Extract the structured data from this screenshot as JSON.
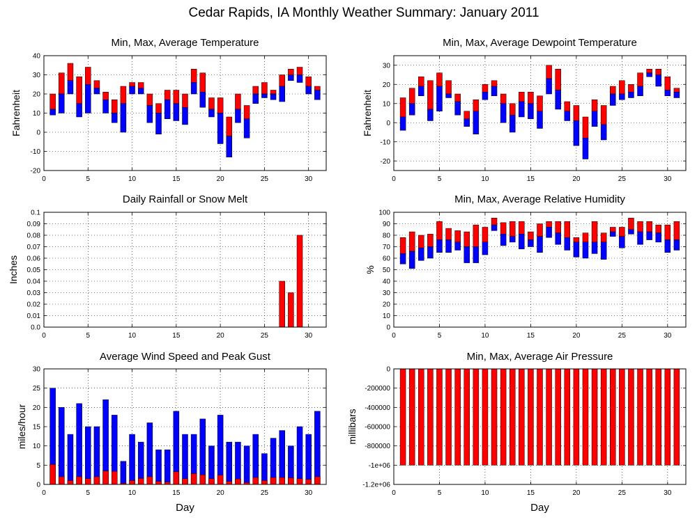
{
  "page": {
    "title": "Cedar Rapids, IA Monthly Weather Summary: January 2011"
  },
  "colors": {
    "red": "#ff0000",
    "blue": "#0000ff",
    "frame": "#000000",
    "grid": "#000000"
  },
  "chart_data": [
    {
      "id": "temperature",
      "type": "bar",
      "title": "Min, Max, Average Temperature",
      "xlabel": "",
      "ylabel": "Fahrenheit",
      "xlim": [
        0,
        32
      ],
      "ylim": [
        -20,
        40
      ],
      "xticks": [
        0,
        5,
        10,
        15,
        20,
        25,
        30
      ],
      "yticks": [
        -20,
        -10,
        0,
        10,
        20,
        30,
        40
      ],
      "ytick_labels": [
        "-20",
        "-10",
        "0",
        "10",
        "20",
        "30",
        "40"
      ],
      "grid": true,
      "x": [
        1,
        2,
        3,
        4,
        5,
        6,
        7,
        8,
        9,
        10,
        11,
        12,
        13,
        14,
        15,
        16,
        17,
        18,
        19,
        20,
        21,
        22,
        23,
        24,
        25,
        26,
        27,
        28,
        29,
        30,
        31
      ],
      "series": [
        {
          "role": "max",
          "color": "red",
          "values": [
            20,
            31,
            36,
            29,
            34,
            27,
            21,
            17,
            24,
            26,
            26,
            20,
            15,
            22,
            22,
            20,
            33,
            31,
            18,
            18,
            8,
            20,
            14,
            24,
            26,
            22,
            30,
            33,
            34,
            29,
            24
          ]
        },
        {
          "role": "avg",
          "color": "red",
          "values": [
            12,
            20,
            27,
            15,
            25,
            23,
            17,
            10,
            15,
            24,
            23,
            14,
            10,
            17,
            15,
            13,
            26,
            21,
            12,
            10,
            -2,
            12,
            7,
            20,
            20,
            20,
            24,
            30,
            30,
            24,
            22
          ]
        },
        {
          "role": "min",
          "color": "blue",
          "values": [
            9,
            10,
            20,
            8,
            10,
            20,
            10,
            5,
            0,
            20,
            20,
            5,
            -1,
            7,
            6,
            4,
            20,
            13,
            8,
            -6,
            -13,
            5,
            -3,
            15,
            18,
            17,
            16,
            27,
            26,
            20,
            17
          ]
        }
      ]
    },
    {
      "id": "dewpoint",
      "type": "bar",
      "title": "Min, Max, Average Dewpoint Temperature",
      "xlabel": "",
      "ylabel": "Fahrenheit",
      "xlim": [
        0,
        32
      ],
      "ylim": [
        -25,
        35
      ],
      "xticks": [
        0,
        5,
        10,
        15,
        20,
        25,
        30
      ],
      "yticks": [
        -20,
        -10,
        0,
        10,
        20,
        30
      ],
      "ytick_labels": [
        "-20",
        "-10",
        "0",
        "10",
        "20",
        "30"
      ],
      "grid": true,
      "x": [
        1,
        2,
        3,
        4,
        5,
        6,
        7,
        8,
        9,
        10,
        11,
        12,
        13,
        14,
        15,
        16,
        17,
        18,
        19,
        20,
        21,
        22,
        23,
        24,
        25,
        26,
        27,
        28,
        29,
        30,
        31
      ],
      "series": [
        {
          "role": "max",
          "color": "red",
          "values": [
            13,
            18,
            24,
            22,
            26,
            22,
            15,
            6,
            12,
            20,
            22,
            15,
            10,
            16,
            16,
            14,
            30,
            28,
            11,
            9,
            3,
            12,
            9,
            19,
            22,
            20,
            26,
            28,
            28,
            24,
            18
          ]
        },
        {
          "role": "avg",
          "color": "red",
          "values": [
            3,
            10,
            19,
            7,
            19,
            15,
            11,
            2,
            6,
            16,
            19,
            10,
            4,
            11,
            10,
            6,
            23,
            17,
            6,
            1,
            -8,
            6,
            -1,
            15,
            15,
            16,
            19,
            26,
            25,
            17,
            16
          ]
        },
        {
          "role": "min",
          "color": "blue",
          "values": [
            -4,
            4,
            14,
            1,
            6,
            13,
            4,
            -2,
            -6,
            12,
            14,
            0,
            -5,
            3,
            2,
            -3,
            15,
            7,
            1,
            -12,
            -19,
            -2,
            -9,
            9,
            12,
            13,
            14,
            24,
            19,
            14,
            13
          ]
        }
      ]
    },
    {
      "id": "rainfall",
      "type": "bar",
      "title": "Daily Rainfall or Snow Melt",
      "xlabel": "",
      "ylabel": "Inches",
      "xlim": [
        0,
        32
      ],
      "ylim": [
        0,
        0.1
      ],
      "xticks": [
        0,
        5,
        10,
        15,
        20,
        25,
        30
      ],
      "yticks": [
        0,
        0.01,
        0.02,
        0.03,
        0.04,
        0.05,
        0.06,
        0.07,
        0.08,
        0.09,
        0.1
      ],
      "ytick_labels": [
        "0.0",
        "0.01",
        "0.02",
        "0.03",
        "0.04",
        "0.05",
        "0.06",
        "0.07",
        "0.08",
        "0.09",
        "0.1"
      ],
      "grid": true,
      "x": [
        27,
        28,
        29
      ],
      "series": [
        {
          "role": "precip",
          "color": "red",
          "values": [
            0.04,
            0.03,
            0.08
          ]
        }
      ]
    },
    {
      "id": "humidity",
      "type": "bar",
      "title": "Min, Max, Average Relative Humidity",
      "xlabel": "",
      "ylabel": "%",
      "xlim": [
        0,
        32
      ],
      "ylim": [
        0,
        100
      ],
      "xticks": [
        0,
        5,
        10,
        15,
        20,
        25,
        30
      ],
      "yticks": [
        0,
        10,
        20,
        30,
        40,
        50,
        60,
        70,
        80,
        90,
        100
      ],
      "ytick_labels": [
        "0",
        "10",
        "20",
        "30",
        "40",
        "50",
        "60",
        "70",
        "80",
        "90",
        "100"
      ],
      "grid": true,
      "x": [
        1,
        2,
        3,
        4,
        5,
        6,
        7,
        8,
        9,
        10,
        11,
        12,
        13,
        14,
        15,
        16,
        17,
        18,
        19,
        20,
        21,
        22,
        23,
        24,
        25,
        26,
        27,
        28,
        29,
        30,
        31
      ],
      "series": [
        {
          "role": "max",
          "color": "red",
          "values": [
            78,
            83,
            80,
            81,
            92,
            86,
            84,
            83,
            89,
            87,
            95,
            91,
            92,
            92,
            83,
            90,
            92,
            92,
            92,
            78,
            82,
            92,
            82,
            87,
            87,
            95,
            92,
            92,
            89,
            89,
            92
          ]
        },
        {
          "role": "avg",
          "color": "red",
          "values": [
            64,
            66,
            69,
            70,
            76,
            76,
            74,
            70,
            70,
            74,
            89,
            81,
            79,
            81,
            76,
            79,
            87,
            82,
            78,
            74,
            74,
            74,
            74,
            83,
            79,
            85,
            83,
            83,
            82,
            76,
            76
          ]
        },
        {
          "role": "min",
          "color": "blue",
          "values": [
            55,
            51,
            58,
            60,
            65,
            65,
            67,
            56,
            56,
            63,
            84,
            71,
            74,
            68,
            70,
            65,
            78,
            72,
            67,
            61,
            60,
            64,
            59,
            79,
            69,
            81,
            72,
            76,
            74,
            65,
            67
          ]
        }
      ]
    },
    {
      "id": "wind",
      "type": "bar",
      "title": "Average Wind Speed and Peak Gust",
      "xlabel": "Day",
      "ylabel": "miles/hour",
      "xlim": [
        0,
        32
      ],
      "ylim": [
        0,
        30
      ],
      "xticks": [
        0,
        5,
        10,
        15,
        20,
        25,
        30
      ],
      "yticks": [
        0,
        5,
        10,
        15,
        20,
        25,
        30
      ],
      "ytick_labels": [
        "0",
        "5",
        "10",
        "15",
        "20",
        "25",
        "30"
      ],
      "grid": true,
      "x": [
        1,
        2,
        3,
        4,
        5,
        6,
        7,
        8,
        9,
        10,
        11,
        12,
        13,
        14,
        15,
        16,
        17,
        18,
        19,
        20,
        21,
        22,
        23,
        24,
        25,
        26,
        27,
        28,
        29,
        30,
        31
      ],
      "series": [
        {
          "role": "peak_gust",
          "color": "blue",
          "values": [
            25,
            20,
            13,
            21,
            15,
            15,
            22,
            18,
            6,
            13,
            11,
            16,
            9,
            9,
            19,
            13,
            13,
            17,
            10,
            18,
            11,
            11,
            10,
            13,
            8,
            12,
            14,
            10,
            15,
            13,
            19
          ]
        },
        {
          "role": "avg_speed",
          "color": "red",
          "values": [
            5.2,
            2,
            1,
            2,
            1.5,
            2,
            3.5,
            3.4,
            0.3,
            1,
            1.6,
            2,
            0.8,
            0.6,
            3.3,
            1.5,
            2.8,
            2.5,
            1.5,
            2.4,
            0.8,
            1.4,
            0.5,
            1.8,
            1,
            1.8,
            1.8,
            1.7,
            1.5,
            1.3,
            2
          ]
        }
      ]
    },
    {
      "id": "pressure",
      "type": "bar",
      "title": "Min, Max, Average Air Pressure",
      "xlabel": "Day",
      "ylabel": "millibars",
      "xlim": [
        0,
        32
      ],
      "ylim": [
        -1200000,
        0
      ],
      "xticks": [
        0,
        5,
        10,
        15,
        20,
        25,
        30
      ],
      "yticks": [
        0,
        -200000,
        -400000,
        -600000,
        -800000,
        -1000000,
        -1200000
      ],
      "ytick_labels": [
        "0",
        "-200000",
        "-400000",
        "-600000",
        "-800000",
        "-1e+06",
        "-1.2e+06"
      ],
      "grid": true,
      "x": [
        1,
        2,
        3,
        4,
        5,
        6,
        7,
        8,
        9,
        10,
        11,
        12,
        13,
        14,
        15,
        16,
        17,
        18,
        19,
        20,
        21,
        22,
        23,
        24,
        25,
        26,
        27,
        28,
        29,
        30,
        31
      ],
      "series": [
        {
          "role": "min",
          "color": "red",
          "values": [
            -1000000,
            -1000000,
            -1000000,
            -1000000,
            -1000000,
            -1000000,
            -1000000,
            -1000000,
            -1000000,
            -1000000,
            -1000000,
            -1000000,
            -1000000,
            -1000000,
            -1000000,
            -1000000,
            -1000000,
            -1000000,
            -1000000,
            -1000000,
            -1000000,
            -1000000,
            -1000000,
            -1000000,
            -1000000,
            -1000000,
            -1000000,
            -1000000,
            -1000000,
            -1000000,
            -1000000
          ]
        }
      ]
    }
  ]
}
